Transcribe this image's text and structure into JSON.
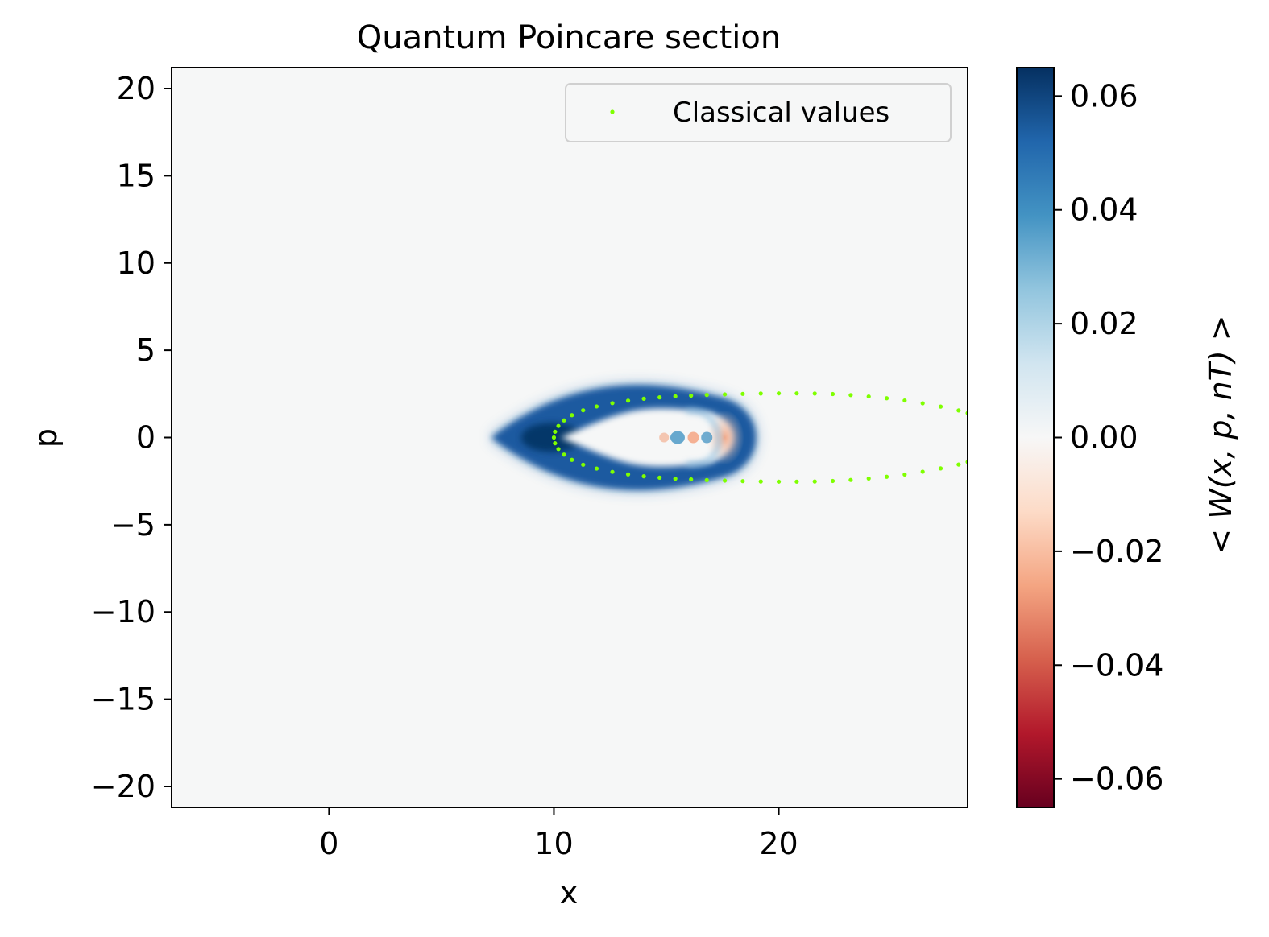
{
  "chart_data": {
    "type": "heatmap",
    "title": "Quantum Poincare section",
    "xlabel": "x",
    "ylabel": "p",
    "colorbar_label": "< W(x, p, nT) >",
    "xlim": [
      -7,
      28.4
    ],
    "ylim": [
      -21.2,
      21.2
    ],
    "x_ticks": [
      0,
      10,
      20
    ],
    "x_tick_labels": [
      "0",
      "10",
      "20"
    ],
    "y_ticks": [
      20,
      15,
      10,
      5,
      0,
      -5,
      -10,
      -15,
      -20
    ],
    "y_tick_labels": [
      "20",
      "15",
      "10",
      "5",
      "0",
      "−5",
      "−10",
      "−15",
      "−20"
    ],
    "colorbar_range": [
      -0.065,
      0.065
    ],
    "colorbar_ticks": [
      0.06,
      0.04,
      0.02,
      0.0,
      -0.02,
      -0.04,
      -0.06
    ],
    "colorbar_tick_labels": [
      "0.06",
      "0.04",
      "0.02",
      "0.00",
      "−0.02",
      "−0.04",
      "−0.06"
    ],
    "colormap": "RdBu",
    "colormap_stops": [
      "#67001f",
      "#b2182b",
      "#d6604d",
      "#f4a582",
      "#fddbc7",
      "#f7f7f7",
      "#d1e5f0",
      "#92c5de",
      "#4393c3",
      "#2166ac",
      "#053061"
    ],
    "background_value": 0.0,
    "features": [
      {
        "name": "outer-lobe",
        "value": 0.065,
        "x_range": [
          7.2,
          19.2
        ],
        "p_range": [
          -2.7,
          2.7
        ]
      },
      {
        "name": "inner-fringe-negative",
        "value": -0.02,
        "x": 17.6,
        "p": 0
      },
      {
        "name": "inner-fringe-positive",
        "value": 0.03,
        "x": 15.5,
        "p": 0
      }
    ],
    "legend": {
      "position": "upper right",
      "entries": [
        {
          "label": "Classical values",
          "color": "#7fff00",
          "marker": "dot"
        }
      ]
    },
    "series": [
      {
        "name": "Classical values",
        "color": "#7fff00",
        "marker": "dot",
        "points": [
          [
            10.0,
            0.0
          ],
          [
            10.05,
            0.33
          ],
          [
            10.2,
            0.66
          ],
          [
            10.45,
            0.98
          ],
          [
            10.8,
            1.28
          ],
          [
            11.3,
            1.56
          ],
          [
            11.9,
            1.78
          ],
          [
            12.6,
            1.97
          ],
          [
            13.3,
            2.11
          ],
          [
            14.0,
            2.22
          ],
          [
            14.7,
            2.3
          ],
          [
            15.4,
            2.36
          ],
          [
            16.1,
            2.4
          ],
          [
            16.8,
            2.44
          ],
          [
            17.6,
            2.47
          ],
          [
            18.4,
            2.5
          ],
          [
            19.2,
            2.52
          ],
          [
            20.0,
            2.53
          ],
          [
            20.8,
            2.53
          ],
          [
            21.6,
            2.52
          ],
          [
            22.4,
            2.49
          ],
          [
            23.2,
            2.43
          ],
          [
            24.0,
            2.35
          ],
          [
            24.8,
            2.25
          ],
          [
            25.6,
            2.12
          ],
          [
            26.4,
            1.96
          ],
          [
            27.2,
            1.77
          ],
          [
            28.0,
            1.55
          ],
          [
            28.4,
            1.4
          ],
          [
            10.05,
            -0.33
          ],
          [
            10.2,
            -0.66
          ],
          [
            10.45,
            -0.98
          ],
          [
            10.8,
            -1.28
          ],
          [
            11.3,
            -1.56
          ],
          [
            11.9,
            -1.78
          ],
          [
            12.6,
            -1.97
          ],
          [
            13.3,
            -2.11
          ],
          [
            14.0,
            -2.22
          ],
          [
            14.7,
            -2.3
          ],
          [
            15.4,
            -2.36
          ],
          [
            16.1,
            -2.4
          ],
          [
            16.8,
            -2.44
          ],
          [
            17.6,
            -2.47
          ],
          [
            18.4,
            -2.5
          ],
          [
            19.2,
            -2.52
          ],
          [
            20.0,
            -2.53
          ],
          [
            20.8,
            -2.53
          ],
          [
            21.6,
            -2.52
          ],
          [
            22.4,
            -2.49
          ],
          [
            23.2,
            -2.43
          ],
          [
            24.0,
            -2.35
          ],
          [
            24.8,
            -2.25
          ],
          [
            25.6,
            -2.12
          ],
          [
            26.4,
            -1.96
          ],
          [
            27.2,
            -1.77
          ],
          [
            28.0,
            -1.55
          ],
          [
            28.4,
            -1.4
          ]
        ]
      }
    ]
  }
}
